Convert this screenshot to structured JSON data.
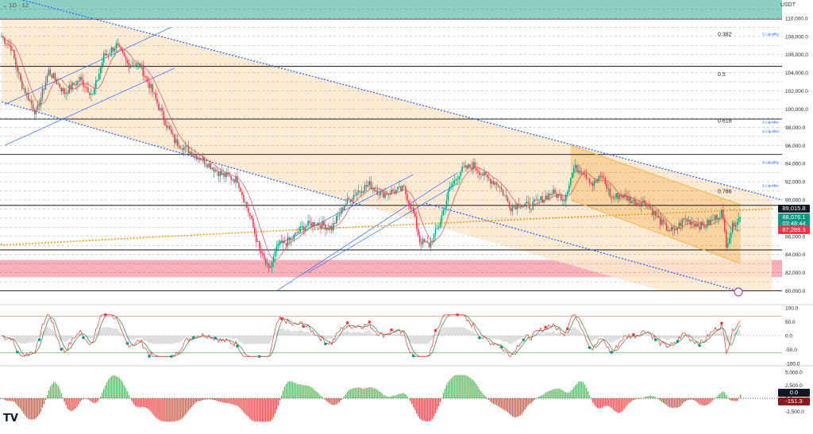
{
  "header": {
    "label": "1D · 12",
    "currency": "USDT"
  },
  "brand": {
    "logo": "TV",
    "logo_icon": "tradingview-logo-icon"
  },
  "colors": {
    "up": "#089981",
    "down": "#f23645",
    "channel_fill": "#fde7cf",
    "teal_zone": "#7fcbbd",
    "red_zone": "#f7a3ab",
    "blue_line": "#2962ff",
    "sma_line": "#e04b4b",
    "bull_flag": "#f5b95c",
    "dotted_orange": "#f0a030",
    "rsi_line": "#e53935",
    "rsi_signal": "#2e7d32",
    "price_tag": "#131722",
    "current_tag": "#089981",
    "low_tag": "#f23645"
  },
  "chart_data": [
    {
      "type": "candlestick",
      "title": "",
      "ylim": [
        79000,
        112000
      ],
      "y_ticks": [
        80000,
        82000,
        84000,
        86000,
        88000,
        90000,
        92000,
        94000,
        96000,
        98000,
        100000,
        102000,
        104000,
        106000,
        108000,
        110000
      ],
      "y_tick_labels": [
        "80,000.0",
        "82,000.0",
        "84,000.0",
        "86,000.0",
        "88,000.0",
        "90,000.0",
        "92,000.0",
        "94,000.0",
        "96,000.0",
        "98,000.0",
        "100,000.0",
        "102,000.0",
        "104,000.0",
        "106,000.0",
        "108,000.0",
        "110,000.0"
      ],
      "horizontal_levels": [
        80000,
        84500,
        89400,
        95000,
        98900,
        104700,
        109900
      ],
      "fib_labels": [
        {
          "label": "0.382",
          "value": 108200
        },
        {
          "label": "0.5",
          "value": 103800
        },
        {
          "label": "0.618",
          "value": 98700
        },
        {
          "label": "0.786",
          "value": 90900
        }
      ],
      "liquidity_labels": [
        {
          "label": "S Liquidity",
          "value": 108300
        },
        {
          "label": "S Liquidity",
          "value": 98600
        },
        {
          "label": "S Liquidity",
          "value": 97600
        },
        {
          "label": "S Liquidity",
          "value": 94200
        },
        {
          "label": "S Liquidity",
          "value": 91600
        }
      ],
      "zones": [
        {
          "name": "resistance",
          "from": 110000,
          "to": 112000
        },
        {
          "name": "support",
          "from": 81500,
          "to": 83400
        }
      ],
      "price_tags": [
        {
          "label": "89,015.8",
          "value": 89000,
          "kind": "level"
        },
        {
          "label": "88,076.1",
          "value": 88100,
          "kind": "current"
        },
        {
          "label": "03:48:44",
          "value": 87400,
          "kind": "timer"
        },
        {
          "label": "87,289.3",
          "value": 86700,
          "kind": "low"
        }
      ],
      "anchors": [
        [
          0,
          108000
        ],
        [
          6,
          106800
        ],
        [
          12,
          103000
        ],
        [
          22,
          99500
        ],
        [
          30,
          104200
        ],
        [
          40,
          101800
        ],
        [
          50,
          103300
        ],
        [
          58,
          101500
        ],
        [
          65,
          105800
        ],
        [
          73,
          107000
        ],
        [
          80,
          105000
        ],
        [
          88,
          104800
        ],
        [
          95,
          102300
        ],
        [
          103,
          99000
        ],
        [
          110,
          96500
        ],
        [
          120,
          95300
        ],
        [
          130,
          94200
        ],
        [
          140,
          92800
        ],
        [
          150,
          92200
        ],
        [
          158,
          88200
        ],
        [
          164,
          84500
        ],
        [
          170,
          82200
        ],
        [
          176,
          85000
        ],
        [
          184,
          85600
        ],
        [
          192,
          87100
        ],
        [
          200,
          87500
        ],
        [
          210,
          86900
        ],
        [
          218,
          89500
        ],
        [
          226,
          90900
        ],
        [
          234,
          91700
        ],
        [
          242,
          90600
        ],
        [
          250,
          91000
        ],
        [
          256,
          91200
        ],
        [
          262,
          88500
        ],
        [
          266,
          85500
        ],
        [
          272,
          85000
        ],
        [
          278,
          87100
        ],
        [
          285,
          91200
        ],
        [
          292,
          93200
        ],
        [
          300,
          93800
        ],
        [
          308,
          92500
        ],
        [
          316,
          91700
        ],
        [
          324,
          89200
        ],
        [
          330,
          89600
        ],
        [
          336,
          89300
        ],
        [
          342,
          89900
        ],
        [
          350,
          90800
        ],
        [
          358,
          90200
        ],
        [
          364,
          93500
        ],
        [
          370,
          93200
        ],
        [
          376,
          91700
        ],
        [
          382,
          92600
        ],
        [
          388,
          90200
        ],
        [
          394,
          90600
        ],
        [
          402,
          89800
        ],
        [
          410,
          89700
        ],
        [
          416,
          88300
        ],
        [
          422,
          87000
        ],
        [
          428,
          86500
        ],
        [
          434,
          87900
        ],
        [
          440,
          87500
        ],
        [
          446,
          87100
        ],
        [
          452,
          87700
        ],
        [
          458,
          88700
        ],
        [
          461,
          85200
        ],
        [
          466,
          87500
        ],
        [
          470,
          88100
        ]
      ]
    },
    {
      "type": "line",
      "name": "oscillator",
      "ylim": [
        -100,
        100
      ],
      "y_ticks": [
        100,
        50,
        0,
        -50,
        -100
      ],
      "y_tick_labels": [
        "100.0",
        "50.0",
        "0.0",
        "-50.0",
        "-100.0"
      ],
      "ob_level": 70,
      "os_level": -62
    },
    {
      "type": "bar",
      "name": "histogram",
      "ylim": [
        -5800,
        5800
      ],
      "y_ticks": [
        5000,
        2500,
        0,
        -2500
      ],
      "y_tick_labels": [
        "5,000.0",
        "2,500.0",
        "0.0",
        "-2,500.0"
      ],
      "current_label": "-151.3",
      "zero_label": "0.0"
    }
  ]
}
